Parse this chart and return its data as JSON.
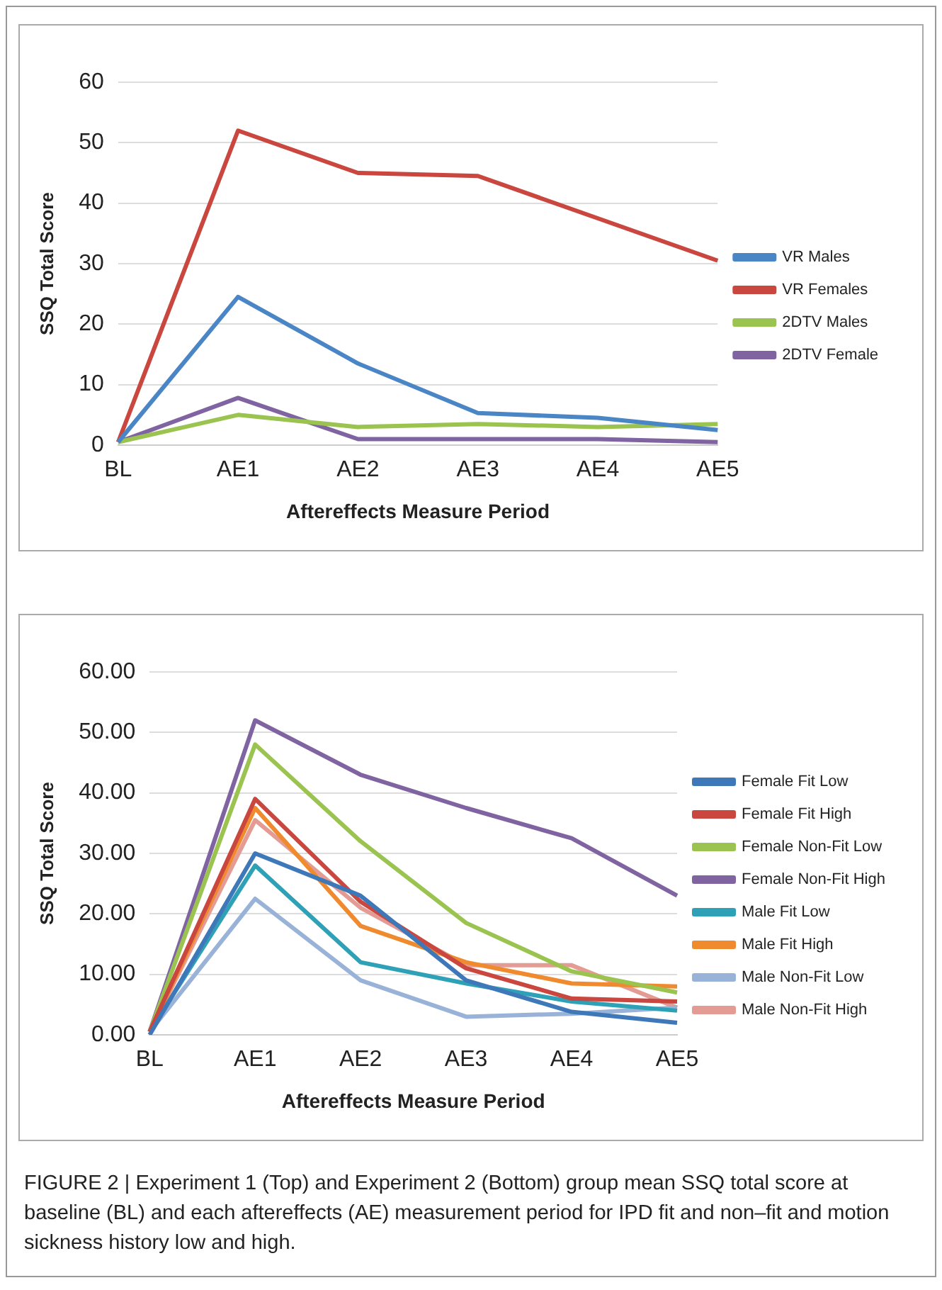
{
  "chart_data": [
    {
      "type": "line",
      "xlabel": "Aftereffects Measure Period",
      "ylabel": "SSQ Total Score",
      "categories": [
        "BL",
        "AE1",
        "AE2",
        "AE3",
        "AE4",
        "AE5"
      ],
      "ylim": [
        0,
        60
      ],
      "yticks": [
        0,
        10,
        20,
        30,
        40,
        50,
        60
      ],
      "grid": "y",
      "legend": "right",
      "marker": "none",
      "series": [
        {
          "name": "VR Males",
          "color": "#4a86c5",
          "values": [
            0.5,
            24.5,
            13.5,
            5.3,
            4.5,
            2.5
          ]
        },
        {
          "name": "VR Females",
          "color": "#c9473f",
          "values": [
            0.5,
            52,
            45,
            44.5,
            37.5,
            30.5
          ]
        },
        {
          "name": "2DTV Males",
          "color": "#9bc34f",
          "values": [
            0.5,
            5,
            3,
            3.5,
            3,
            3.5
          ]
        },
        {
          "name": "2DTV Female",
          "color": "#8064a2",
          "values": [
            0.5,
            7.8,
            1,
            1,
            1,
            0.5
          ]
        }
      ]
    },
    {
      "type": "line",
      "xlabel": "Aftereffects Measure Period",
      "ylabel": "SSQ Total Score",
      "categories": [
        "BL",
        "AE1",
        "AE2",
        "AE3",
        "AE4",
        "AE5"
      ],
      "ylim": [
        0,
        60
      ],
      "yticks": [
        {
          "value": 0,
          "label": "0.00"
        },
        {
          "value": 10,
          "label": "10.00"
        },
        {
          "value": 20,
          "label": "20.00"
        },
        {
          "value": 30,
          "label": "30.00"
        },
        {
          "value": 40,
          "label": "40.00"
        },
        {
          "value": 50,
          "label": "50.00"
        },
        {
          "value": 60,
          "label": "60.00"
        }
      ],
      "grid": "y",
      "legend": "right",
      "marker": "none",
      "series": [
        {
          "name": "Female Fit Low",
          "color": "#3f78b9",
          "values": [
            0,
            30,
            23,
            9,
            3.8,
            2
          ]
        },
        {
          "name": "Female Fit High",
          "color": "#c9473f",
          "values": [
            0.5,
            39,
            22,
            11,
            6,
            5.5
          ]
        },
        {
          "name": "Female Non-Fit Low",
          "color": "#9bc34f",
          "values": [
            0.5,
            48,
            32,
            18.5,
            10.5,
            7
          ]
        },
        {
          "name": "Female Non-Fit High",
          "color": "#8064a2",
          "values": [
            0.5,
            52,
            43,
            37.5,
            32.5,
            23
          ]
        },
        {
          "name": "Male Fit Low",
          "color": "#2fa1b6",
          "values": [
            0.5,
            28,
            12,
            8.5,
            5.5,
            4
          ]
        },
        {
          "name": "Male Fit High",
          "color": "#ef8a2e",
          "values": [
            0.5,
            37.5,
            18,
            12,
            8.5,
            8
          ]
        },
        {
          "name": "Male Non-Fit Low",
          "color": "#99b3d8",
          "values": [
            0.5,
            22.5,
            9,
            3,
            3.5,
            4.5
          ]
        },
        {
          "name": "Male Non-Fit High",
          "color": "#e39b93",
          "values": [
            0.5,
            35.5,
            21,
            11.5,
            11.5,
            4.5
          ]
        }
      ],
      "annotations": [
        "FIGURE 2 | Experiment 1 (Top) and Experiment 2 (Bottom) group mean SSQ total score at baseline (BL) and each aftereffects (AE) measurement period for IPD fit and non–fit and motion sickness history low and high."
      ]
    }
  ]
}
